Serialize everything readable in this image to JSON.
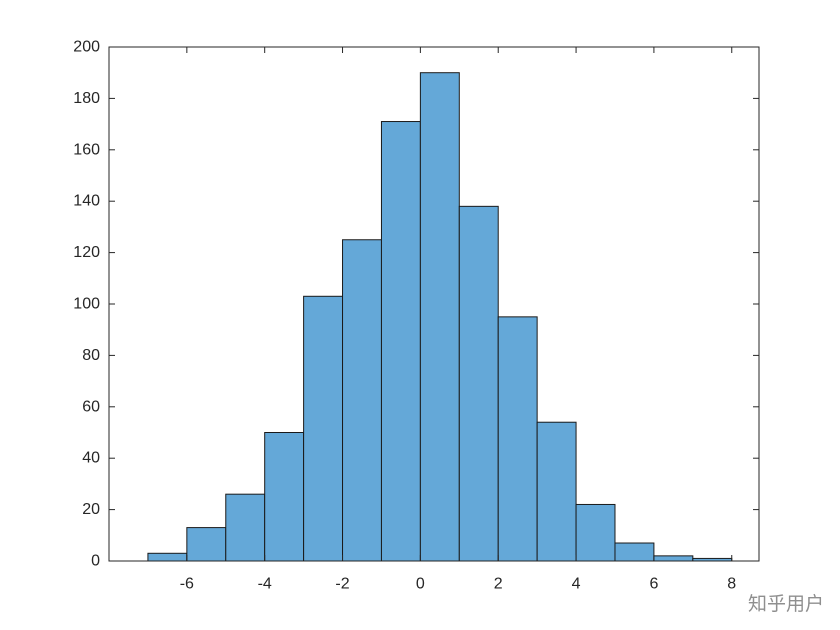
{
  "chart_data": {
    "type": "bar",
    "bin_edges": [
      -7,
      -6,
      -5,
      -4,
      -3,
      -2,
      -1,
      0,
      1,
      2,
      3,
      4,
      5,
      6,
      7,
      8
    ],
    "values": [
      3,
      13,
      26,
      50,
      103,
      125,
      171,
      190,
      138,
      95,
      54,
      22,
      7,
      2,
      1
    ],
    "xlim": [
      -8,
      8.7
    ],
    "ylim": [
      0,
      200
    ],
    "xticks": [
      -6,
      -4,
      -2,
      0,
      2,
      4,
      6,
      8
    ],
    "yticks": [
      0,
      20,
      40,
      60,
      80,
      100,
      120,
      140,
      160,
      180,
      200
    ],
    "title": "",
    "xlabel": "",
    "ylabel": "",
    "grid": false,
    "bar_color": "#64a8d8",
    "edge_color": "#1a1a1a"
  },
  "watermark": "知乎用户"
}
